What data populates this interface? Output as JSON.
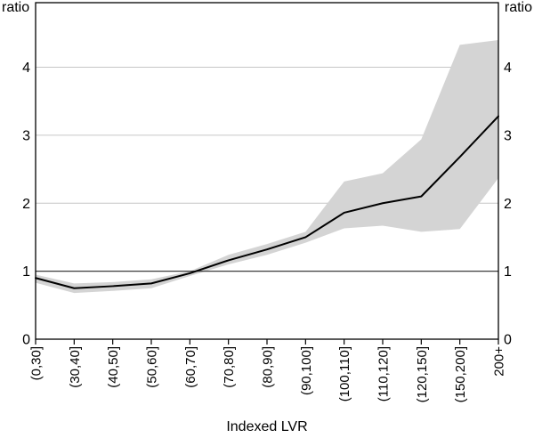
{
  "chart_data": {
    "type": "line",
    "title": "",
    "xlabel": "Indexed LVR",
    "ylabel_left": "ratio",
    "ylabel_right": "ratio",
    "categories": [
      "(0,30]",
      "(30,40]",
      "(40,50]",
      "(50,60]",
      "(60,70]",
      "(70,80]",
      "(80,90]",
      "(90,100]",
      "(100,110]",
      "(110,120]",
      "(120,150]",
      "(150,200]",
      "200+"
    ],
    "series": [
      {
        "name": "ratio",
        "values": [
          0.9,
          0.75,
          0.78,
          0.82,
          0.97,
          1.16,
          1.32,
          1.5,
          1.86,
          2.0,
          2.1,
          2.68,
          3.28
        ]
      }
    ],
    "band": {
      "name": "confidence-band",
      "lower": [
        0.83,
        0.68,
        0.71,
        0.75,
        0.93,
        1.1,
        1.24,
        1.42,
        1.63,
        1.67,
        1.58,
        1.62,
        2.37
      ],
      "upper": [
        0.95,
        0.82,
        0.84,
        0.88,
        1.0,
        1.24,
        1.4,
        1.58,
        2.32,
        2.44,
        2.94,
        4.33,
        4.4
      ]
    },
    "yticks": [
      0,
      1,
      2,
      3,
      4
    ],
    "ylim": [
      0,
      4.95
    ],
    "reference_line_y": 1,
    "grid": "horizontal",
    "legend": "none",
    "colors": {
      "line": "#000000",
      "band": "#d4d4d4",
      "gridline": "#c6c6c6",
      "reference_line": "#3c3c3c",
      "frame": "#000000",
      "text": "#000000"
    }
  }
}
